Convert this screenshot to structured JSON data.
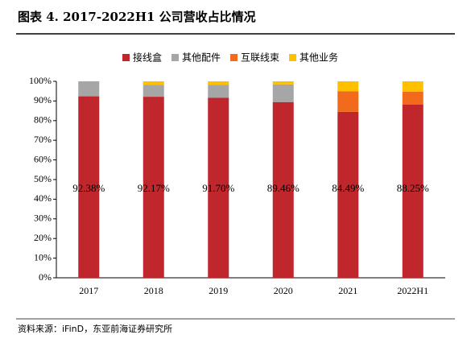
{
  "chart_data": {
    "type": "stacked_bar",
    "title": "图表 4.   2017-2022H1 公司营收占比情况",
    "source": "资料来源：iFinD，东亚前海证券研究所",
    "categories": [
      "2017",
      "2018",
      "2019",
      "2020",
      "2021",
      "2022H1"
    ],
    "series": [
      {
        "name": "接线盒",
        "color": "#c0272d",
        "values": [
          92.38,
          92.17,
          91.7,
          89.46,
          84.49,
          88.25
        ],
        "value_labels": [
          "92.38%",
          "92.17%",
          "91.70%",
          "89.46%",
          "84.49%",
          "88.25%"
        ]
      },
      {
        "name": "其他配件",
        "color": "#a6a6a6",
        "values": [
          7.62,
          6.1,
          6.6,
          9.0,
          0,
          0
        ]
      },
      {
        "name": "互联线束",
        "color": "#f26b1d",
        "values": [
          0,
          0,
          0,
          0,
          10.5,
          6.5
        ]
      },
      {
        "name": "其他业务",
        "color": "#ffc000",
        "values": [
          0,
          1.73,
          1.7,
          1.54,
          5.01,
          5.25
        ]
      }
    ],
    "ylim": [
      0,
      100
    ],
    "yticks": [
      {
        "value": 0,
        "label": "0%"
      },
      {
        "value": 10,
        "label": "10%"
      },
      {
        "value": 20,
        "label": "20%"
      },
      {
        "value": 30,
        "label": "30%"
      },
      {
        "value": 40,
        "label": "40%"
      },
      {
        "value": 50,
        "label": "50%"
      },
      {
        "value": 60,
        "label": "60%"
      },
      {
        "value": 70,
        "label": "70%"
      },
      {
        "value": 80,
        "label": "80%"
      },
      {
        "value": 90,
        "label": "90%"
      },
      {
        "value": 100,
        "label": "100%"
      }
    ],
    "legend": "top"
  }
}
